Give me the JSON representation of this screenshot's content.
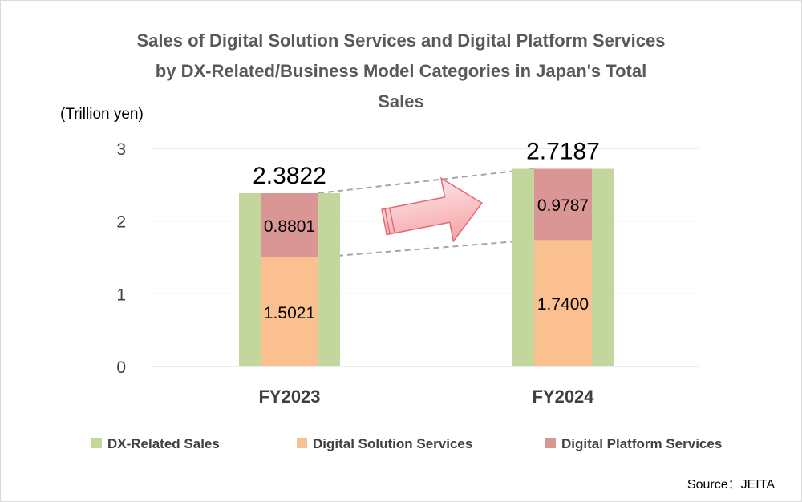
{
  "chart_data": {
    "type": "bar",
    "title": "Sales of Digital Solution Services and Digital Platform Services by DX-Related/Business Model Categories in Japan's Total Sales",
    "title_lines": [
      "Sales of Digital Solution Services and Digital Platform Services",
      "by DX-Related/Business Model Categories in Japan's Total",
      "Sales"
    ],
    "unit": "(Trillion yen)",
    "ylim": [
      0,
      3
    ],
    "yticks": [
      "0",
      "1",
      "2",
      "3"
    ],
    "grid": true,
    "legend_position": "bottom",
    "categories": [
      "FY2023",
      "FY2024"
    ],
    "series": [
      {
        "name": "DX-Related Sales",
        "values": [
          2.3822,
          2.7187
        ],
        "labels": [
          "2.3822",
          "2.7187"
        ],
        "color": "#c3d69b"
      },
      {
        "name": "Digital Solution Services",
        "values": [
          1.5021,
          1.74
        ],
        "labels": [
          "1.5021",
          "1.7400"
        ],
        "color": "#fac090"
      },
      {
        "name": "Digital Platform Services",
        "values": [
          0.8801,
          0.9787
        ],
        "labels": [
          "0.8801",
          "0.9787"
        ],
        "color": "#d99694"
      }
    ]
  },
  "source": "Source：JEITA",
  "colors": {
    "arrow_fill": "#f4a3a6",
    "connector": "#a6a6a6",
    "grid": "#d9d9d9"
  }
}
